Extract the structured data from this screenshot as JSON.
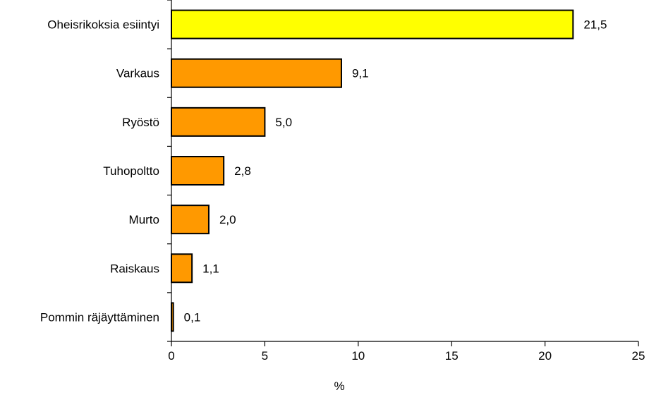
{
  "chart_data": {
    "type": "bar",
    "orientation": "horizontal",
    "categories": [
      "Oheisrikoksia esiintyi",
      "Varkaus",
      "Ryöstö",
      "Tuhopoltto",
      "Murto",
      "Raiskaus",
      "Pommin räjäyttäminen"
    ],
    "values": [
      21.5,
      9.1,
      5.0,
      2.8,
      2.0,
      1.1,
      0.1
    ],
    "value_labels": [
      "21,5",
      "9,1",
      "5,0",
      "2,8",
      "2,0",
      "1,1",
      "0,1"
    ],
    "bar_colors": [
      "#ffff00",
      "#ff9900",
      "#ff9900",
      "#ff9900",
      "#ff9900",
      "#ff9900",
      "#ff9900"
    ],
    "xlabel": "%",
    "ylabel": "",
    "title": "",
    "xlim": [
      0,
      25
    ],
    "xticks": [
      0,
      5,
      10,
      15,
      20,
      25
    ],
    "grid": false,
    "legend": "none"
  }
}
